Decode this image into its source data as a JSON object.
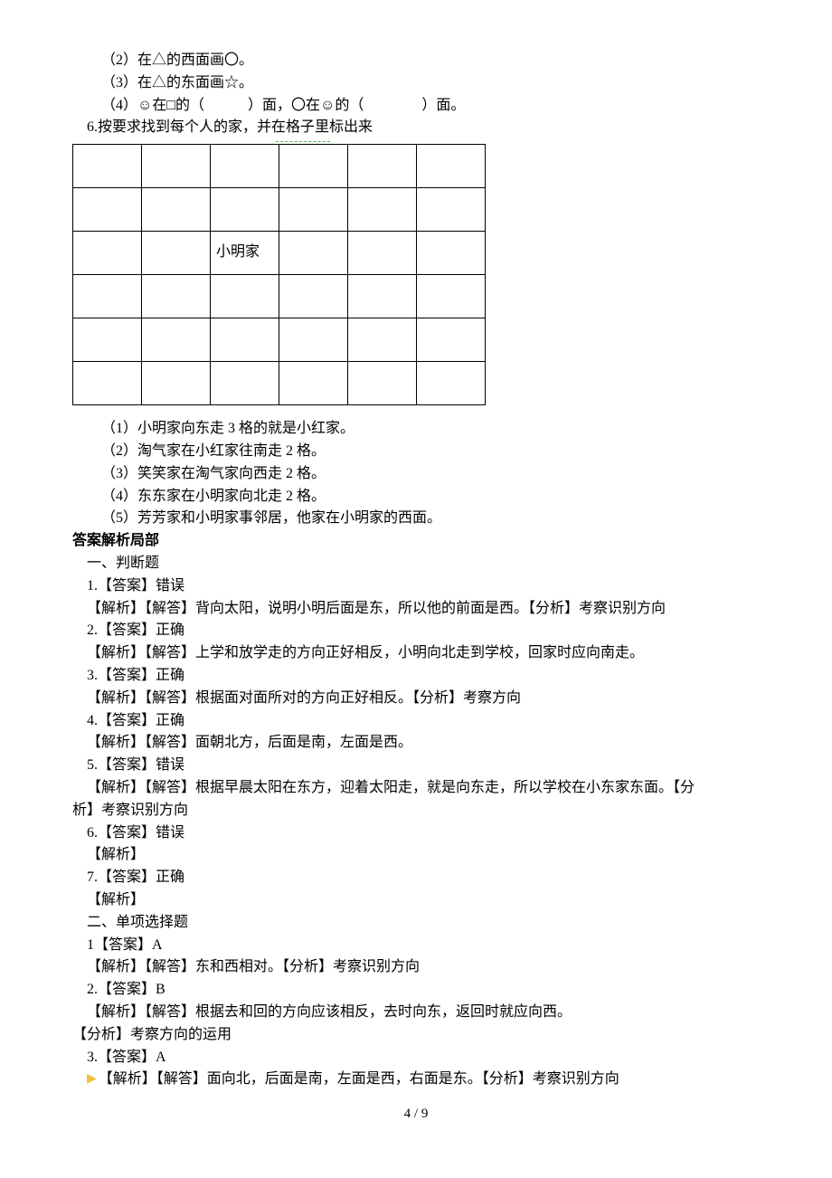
{
  "q2": "（2）在△的西面画〇。",
  "q3": "（3）在△的东面画☆。",
  "q4": "（4）☺在□的（　　　）面，〇在☺的（　　　　）面。",
  "q6_title": "6.按要求找到每个人的家，并在格子里标出来",
  "grid_label": "小明家",
  "q6_1": "（1）小明家向东走 3 格的就是小红家。",
  "q6_2": "（2）淘气家在小红家往南走 2 格。",
  "q6_3": "（3）笑笑家在淘气家向西走 2 格。",
  "q6_4": "（4）东东家在小明家向北走 2 格。",
  "q6_5": "（5）芳芳家和小明家事邻居，他家在小明家的西面。",
  "ans_header": "答案解析局部",
  "sec1": "一、判断题",
  "a1": "1.【答案】错误",
  "a1e": "【解析】【解答】背向太阳，说明小明后面是东，所以他的前面是西。【分析】考察识别方向",
  "a2": "2.【答案】正确",
  "a2e": "【解析】【解答】上学和放学走的方向正好相反，小明向北走到学校，回家时应向南走。",
  "a3": "3.【答案】正确",
  "a3e": "【解析】【解答】根据面对面所对的方向正好相反。【分析】考察方向",
  "a4": "4.【答案】正确",
  "a4e": "【解析】【解答】面朝北方，后面是南，左面是西。",
  "a5": "5.【答案】错误",
  "a5e": "【解析】【解答】根据早晨太阳在东方，迎着太阳走，就是向东走，所以学校在小东家东面。【分",
  "a5e2": "析】考察识别方向",
  "a6": "6.【答案】错误",
  "a6e": "【解析】",
  "a7": "7.【答案】正确",
  "a7e": "【解析】",
  "sec2": "二、单项选择题",
  "b1": "1【答案】A",
  "b1e": "【解析】【解答】东和西相对。【分析】考察识别方向",
  "b2": "2.【答案】B",
  "b2e": "【解析】【解答】根据去和回的方向应该相反，去时向东，返回时就应向西。",
  "b2e2": "【分析】考察方向的运用",
  "b3": "3.【答案】A",
  "b3e": "【解析】【解答】面向北，后面是南，左面是西，右面是东。【分析】考察识别方向",
  "footer": "4 / 9"
}
